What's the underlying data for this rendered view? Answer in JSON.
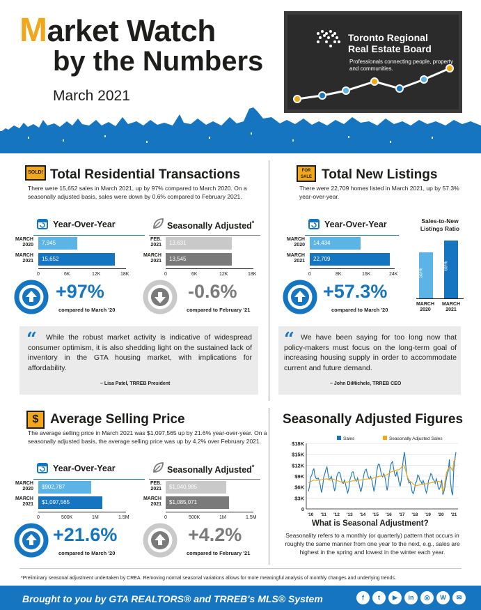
{
  "header": {
    "title_m": "M",
    "title_rest": "arket Watch",
    "title_line2": "by the Numbers",
    "date": "March 2021",
    "org_name_line1": "Toronto Regional",
    "org_name_line2": "Real Estate Board",
    "tagline": "Professionals connecting people, property and communities."
  },
  "transactions": {
    "icon": "sold-sign-icon",
    "icon_text": "SOLD!",
    "title": "Total Residential Transactions",
    "description": "There were 15,652 sales in March 2021, up by 97% compared to March 2020. On a seasonally adjusted basis, sales were down by 0.6% compared to February 2021.",
    "yoy": {
      "heading": "Year-Over-Year",
      "rows": [
        {
          "label_line1": "MARCH",
          "label_line2": "2020",
          "value": 7945,
          "text": "7,945"
        },
        {
          "label_line1": "MARCH",
          "label_line2": "2021",
          "value": 15652,
          "text": "15,652"
        }
      ],
      "ticks": [
        "0",
        "6K",
        "12K",
        "18K"
      ],
      "max": 18000,
      "change": "+97%",
      "compared": "compared to March '20"
    },
    "sa": {
      "heading": "Seasonally Adjusted",
      "star": "*",
      "rows": [
        {
          "label_line1": "FEB.",
          "label_line2": "2021",
          "value": 13631,
          "text": "13,631"
        },
        {
          "label_line1": "MARCH",
          "label_line2": "2021",
          "value": 13545,
          "text": "13,545"
        }
      ],
      "ticks": [
        "0",
        "6K",
        "12K",
        "18K"
      ],
      "max": 18000,
      "change": "-0.6%",
      "compared": "compared to February '21"
    },
    "quote": "While the robust market activity is indicative of widespread consumer optimism, it is also shedding light on the sustained lack of inventory in the GTA housing market, with implications for affordability.",
    "quote_by": "– Lisa Patel, TRREB President"
  },
  "listings": {
    "icon": "for-sale-sign-icon",
    "icon_text": "FOR SALE",
    "title": "Total New Listings",
    "description": "There were 22,709 homes listed in March 2021, up by 57.3% year-over-year.",
    "yoy": {
      "heading": "Year-Over-Year",
      "rows": [
        {
          "label_line1": "MARCH",
          "label_line2": "2020",
          "value": 14434,
          "text": "14,434"
        },
        {
          "label_line1": "MARCH",
          "label_line2": "2021",
          "value": 22709,
          "text": "22,709"
        }
      ],
      "ticks": [
        "0",
        "8K",
        "16K",
        "24K"
      ],
      "max": 24000,
      "change": "+57.3%",
      "compared": "compared to March '20"
    },
    "ratio": {
      "title": "Sales-to-New Listings Ratio",
      "bars": [
        {
          "label_line1": "MARCH",
          "label_line2": "2020",
          "value": 55,
          "text": "55%",
          "color": "#5cb4e6"
        },
        {
          "label_line1": "MARCH",
          "label_line2": "2021",
          "value": 69,
          "text": "69%",
          "color": "#1575c0"
        }
      ]
    },
    "quote": "We have been saying for too long now that policy-makers must focus on the long-term goal of increasing housing supply in order to accommodate current and future demand.",
    "quote_by": "– John DiMichele, TRREB CEO"
  },
  "price": {
    "icon": "dollar-sign-icon",
    "title": "Average Selling Price",
    "description": "The average selling price in March 2021 was $1,097,565 up by 21.6% year-over-year. On a seasonally adjusted basis, the average selling price was up by 4.2% over February 2021.",
    "yoy": {
      "heading": "Year-Over-Year",
      "rows": [
        {
          "label_line1": "MARCH",
          "label_line2": "2020",
          "value": 902787,
          "text": "$902,787"
        },
        {
          "label_line1": "MARCH",
          "label_line2": "2021",
          "value": 1097565,
          "text": "$1,097,565"
        }
      ],
      "ticks": [
        "0",
        "500K",
        "1M",
        "1.5M"
      ],
      "max": 1500000,
      "change": "+21.6%",
      "compared": "compared to March '20"
    },
    "sa": {
      "heading": "Seasonally Adjusted",
      "star": "*",
      "rows": [
        {
          "label_line1": "FEB.",
          "label_line2": "2021",
          "value": 1040985,
          "text": "$1,040,985"
        },
        {
          "label_line1": "MARCH",
          "label_line2": "2021",
          "value": 1085071,
          "text": "$1,085,071"
        }
      ],
      "ticks": [
        "0",
        "500K",
        "1M",
        "1.5M"
      ],
      "max": 1500000,
      "change": "+4.2%",
      "compared": "compared to February '21"
    }
  },
  "seasonal": {
    "title": "Seasonally Adjusted Figures",
    "legend_sales": "Sales",
    "legend_sa": "Seasonally Adjusted Sales",
    "question": "What is Seasonal Adjustment?",
    "explanation": "Seasonality refers to a monthly (or quarterly) pattern that occurs in roughly the same manner from one year to the next, e.g., sales are highest in the spring and lowest in the winter each year."
  },
  "footnote": "*Preliminary seasonal adjustment undertaken by CREA. Removing normal seasonal variations allows for more meaningful analysis of monthly changes and underlying trends.",
  "footer": {
    "text": "Brought to you by GTA REALTORS® and TRREB's MLS® System",
    "social": [
      {
        "icon": "facebook-icon",
        "glyph": "f"
      },
      {
        "icon": "twitter-icon",
        "glyph": "t"
      },
      {
        "icon": "youtube-icon",
        "glyph": "▶"
      },
      {
        "icon": "linkedin-icon",
        "glyph": "in"
      },
      {
        "icon": "instagram-icon",
        "glyph": "◎"
      },
      {
        "icon": "wordpress-icon",
        "glyph": "W"
      },
      {
        "icon": "blog-icon",
        "glyph": "✉"
      }
    ]
  },
  "colors": {
    "blue": "#1575c0",
    "light_blue": "#5cb4e6",
    "orange": "#f2a71b",
    "gray": "#7a7a7a",
    "light_gray": "#c9c9c9"
  },
  "chart_data": [
    {
      "type": "line",
      "title": "Seasonally Adjusted Figures",
      "xlabel": "",
      "ylabel": "",
      "x_ticks": [
        "'10",
        "'11",
        "'12",
        "'13",
        "'14",
        "'15",
        "'16",
        "'17",
        "'18",
        "'19",
        "'20",
        "'21"
      ],
      "y_ticks": [
        "0",
        "$3K",
        "$6K",
        "$9K",
        "$12K",
        "$15K",
        "$18K"
      ],
      "ylim": [
        0,
        18000
      ],
      "grid": true,
      "legend": "top",
      "series": [
        {
          "name": "Sales",
          "color": "#1575c0",
          "values": [
            4800,
            6200,
            8700,
            9200,
            10500,
            11000,
            9200,
            8400,
            8200,
            8500,
            7800,
            6300,
            4500,
            5900,
            8700,
            9600,
            10800,
            11500,
            9500,
            8200,
            8300,
            8900,
            7800,
            6500,
            4900,
            6100,
            8900,
            9800,
            10100,
            9800,
            8400,
            7200,
            7000,
            7900,
            6800,
            5400,
            4400,
            5600,
            8000,
            8900,
            10100,
            10200,
            8900,
            7900,
            7600,
            8500,
            7400,
            5900,
            4700,
            5800,
            8000,
            9700,
            10700,
            10900,
            9600,
            8600,
            8200,
            8900,
            8000,
            6400,
            4800,
            6300,
            9000,
            11000,
            12300,
            12200,
            10700,
            9200,
            8800,
            9700,
            8800,
            7000,
            5100,
            6600,
            9500,
            11600,
            12600,
            13000,
            11100,
            9500,
            9000,
            10300,
            9000,
            7300,
            6200,
            8000,
            11500,
            14000,
            15600,
            12100,
            9500,
            8200,
            7100,
            7400,
            6300,
            4600,
            4200,
            5200,
            7200,
            7500,
            9300,
            9000,
            7800,
            7600,
            6800,
            7800,
            6900,
            5500,
            4400,
            5600,
            7900,
            8500,
            9700,
            9300,
            8200,
            7800,
            7000,
            8300,
            7300,
            5500,
            5400,
            6500,
            8000,
            3900,
            4700,
            6100,
            7900,
            9600,
            10400,
            13600,
            7800,
            4800,
            3800,
            10900,
            13600,
            15652
          ]
        },
        {
          "name": "Seasonally Adjusted Sales",
          "color": "#f2a71b",
          "values": [
            7200,
            7300,
            7500,
            7600,
            7800,
            7900,
            7900,
            7800,
            7800,
            7900,
            7900,
            8000,
            8000,
            8100,
            8100,
            8200,
            8200,
            8300,
            8100,
            8000,
            7900,
            8000,
            8100,
            8200,
            8000,
            7900,
            7800,
            7700,
            7600,
            7500,
            7400,
            7400,
            7300,
            7300,
            7300,
            7300,
            7400,
            7500,
            7500,
            7600,
            7700,
            7700,
            7700,
            7800,
            7800,
            7800,
            7900,
            7900,
            8000,
            8000,
            8100,
            8100,
            8200,
            8200,
            8200,
            8300,
            8300,
            8300,
            8400,
            8400,
            8500,
            8600,
            8700,
            8800,
            8900,
            9000,
            9000,
            9100,
            9100,
            9200,
            9200,
            9300,
            9400,
            9600,
            9800,
            10000,
            10200,
            10300,
            10400,
            10500,
            10600,
            10700,
            10700,
            10800,
            11000,
            11400,
            11800,
            12000,
            11500,
            10500,
            9500,
            8500,
            8000,
            7600,
            7400,
            7200,
            6800,
            6600,
            6500,
            6400,
            6500,
            6500,
            6600,
            6700,
            6700,
            6800,
            6800,
            6900,
            6900,
            7000,
            7000,
            7100,
            7200,
            7200,
            7300,
            7300,
            7400,
            7500,
            7500,
            7600,
            7500,
            7400,
            6500,
            4500,
            5500,
            7500,
            9500,
            10500,
            11000,
            11500,
            11500,
            11000,
            10500,
            13000,
            13631,
            13545
          ]
        }
      ]
    },
    {
      "type": "bar",
      "title": "Total Residential Transactions - Year-Over-Year",
      "categories": [
        "MARCH 2020",
        "MARCH 2021"
      ],
      "values": [
        7945,
        15652
      ],
      "xlim": [
        0,
        18000
      ]
    },
    {
      "type": "bar",
      "title": "Total Residential Transactions - Seasonally Adjusted",
      "categories": [
        "FEB. 2021",
        "MARCH 2021"
      ],
      "values": [
        13631,
        13545
      ],
      "xlim": [
        0,
        18000
      ]
    },
    {
      "type": "bar",
      "title": "Total New Listings - Year-Over-Year",
      "categories": [
        "MARCH 2020",
        "MARCH 2021"
      ],
      "values": [
        14434,
        22709
      ],
      "xlim": [
        0,
        24000
      ]
    },
    {
      "type": "bar",
      "title": "Sales-to-New Listings Ratio",
      "categories": [
        "MARCH 2020",
        "MARCH 2021"
      ],
      "values": [
        55,
        69
      ]
    },
    {
      "type": "bar",
      "title": "Average Selling Price - Year-Over-Year",
      "categories": [
        "MARCH 2020",
        "MARCH 2021"
      ],
      "values": [
        902787,
        1097565
      ],
      "xlim": [
        0,
        1500000
      ]
    },
    {
      "type": "bar",
      "title": "Average Selling Price - Seasonally Adjusted",
      "categories": [
        "FEB. 2021",
        "MARCH 2021"
      ],
      "values": [
        1040985,
        1085071
      ],
      "xlim": [
        0,
        1500000
      ]
    }
  ]
}
